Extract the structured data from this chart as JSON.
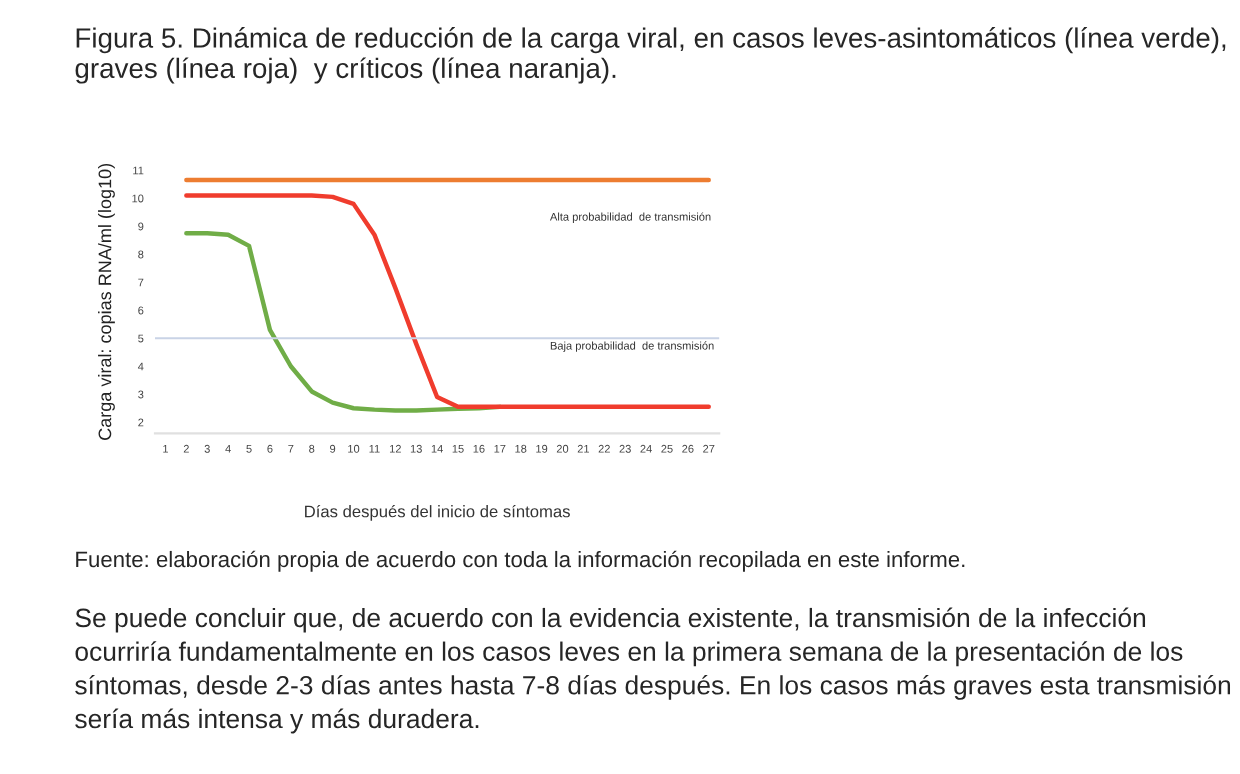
{
  "chart_data": {
    "type": "line",
    "title": "Figura 5. Dinámica de reducción de la carga viral, en casos leves-asintomáticos (línea verde), graves (línea roja)  y críticos (línea naranja).",
    "xlabel": "Días después del inicio de síntomas",
    "ylabel": "Carga viral: copias RNA/ml (log10)",
    "categories": [
      "1",
      "2",
      "3",
      "4",
      "5",
      "6",
      "7",
      "8",
      "9",
      "10",
      "11",
      "12",
      "13",
      "14",
      "15",
      "16",
      "17",
      "18",
      "19",
      "20",
      "21",
      "22",
      "23",
      "24",
      "25",
      "26",
      "27"
    ],
    "series": [
      {
        "color": "#70ad47",
        "values": [
          null,
          8.75,
          8.75,
          8.7,
          8.3,
          5.3,
          4.0,
          3.1,
          2.7,
          2.5,
          2.45,
          2.42,
          2.42,
          2.45,
          2.48,
          2.5,
          2.55,
          null,
          null,
          null,
          null,
          null,
          null,
          null,
          null,
          null,
          null
        ]
      },
      {
        "color": "#ed7d31",
        "values": [
          null,
          10.65,
          10.65,
          10.65,
          10.65,
          10.65,
          10.65,
          10.65,
          10.65,
          10.65,
          10.65,
          10.65,
          10.65,
          10.65,
          10.65,
          10.65,
          10.65,
          10.65,
          10.65,
          10.65,
          10.65,
          10.65,
          10.65,
          10.65,
          10.65,
          10.65,
          10.65
        ]
      },
      {
        "color": "#f03c2d",
        "values": [
          null,
          10.1,
          10.1,
          10.1,
          10.1,
          10.1,
          10.1,
          10.1,
          10.05,
          9.8,
          8.7,
          6.8,
          4.8,
          2.9,
          2.55,
          2.55,
          2.55,
          2.55,
          2.55,
          2.55,
          2.55,
          2.55,
          2.55,
          2.55,
          2.55,
          2.55,
          2.55
        ]
      }
    ],
    "ylim": [
      1.6,
      11
    ],
    "yticks": [
      2,
      3,
      4,
      5,
      6,
      7,
      8,
      9,
      10,
      11
    ],
    "grid": false,
    "legend": false,
    "marker": "none",
    "line_style": "solid",
    "ref_lines": [
      {
        "axis": "y",
        "value": 5,
        "color": "#c9d3e6"
      }
    ],
    "annotations": [
      "Alta probabilidad  de transmisión",
      "Baja probabilidad  de transmisión",
      "Fuente: elaboración propia de acuerdo con toda la información recopilada en este informe.",
      "Se puede concluir que, de acuerdo con la evidencia existente, la transmisión de la infección ocurriría fundamentalmente en los casos leves en la primera semana de la presentación de los síntomas, desde 2-3 días antes hasta 7-8 días después. En los casos más graves esta transmisión sería más intensa y más duradera."
    ]
  }
}
